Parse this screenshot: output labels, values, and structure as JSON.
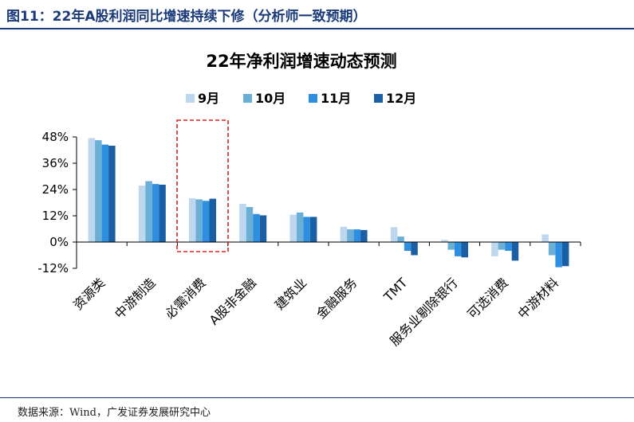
{
  "figure": {
    "title": "图11：22年A股利润同比增速持续下修（分析师一致预期）",
    "source": "数据来源：Wind，广发证券发展研究中心"
  },
  "colors": {
    "series": [
      "#bdd7ee",
      "#6baed6",
      "#2e8fe0",
      "#1a5fa3"
    ],
    "highlight_box": "#e02020",
    "rule": "#1a3a7a"
  },
  "chart_data": {
    "type": "bar",
    "title": "22年净利润增速动态预测",
    "xlabel": "",
    "ylabel": "",
    "ylim": [
      -12,
      48
    ],
    "yticks": [
      "48%",
      "36%",
      "24%",
      "12%",
      "0%",
      "-12%"
    ],
    "legend_position": "top",
    "categories": [
      "资源类",
      "中游制造",
      "必需消费",
      "A股非金融",
      "建筑业",
      "金融服务",
      "TMT",
      "服务业剔除银行",
      "可选消费",
      "中游材料"
    ],
    "highlighted_category": "必需消费",
    "series": [
      {
        "name": "9月",
        "values": [
          47.5,
          25.8,
          20.0,
          17.5,
          12.5,
          7.0,
          6.8,
          1.0,
          -6.5,
          3.5
        ]
      },
      {
        "name": "10月",
        "values": [
          46.5,
          27.8,
          19.5,
          16.0,
          13.5,
          5.8,
          2.5,
          -3.5,
          -3.5,
          -6.0
        ]
      },
      {
        "name": "11月",
        "values": [
          44.5,
          26.5,
          18.8,
          12.8,
          11.5,
          5.8,
          -4.0,
          -6.5,
          -4.0,
          -11.5
        ]
      },
      {
        "name": "12月",
        "values": [
          44.0,
          26.2,
          19.8,
          12.2,
          11.5,
          5.5,
          -6.0,
          -7.0,
          -8.5,
          -11.0
        ]
      }
    ]
  }
}
